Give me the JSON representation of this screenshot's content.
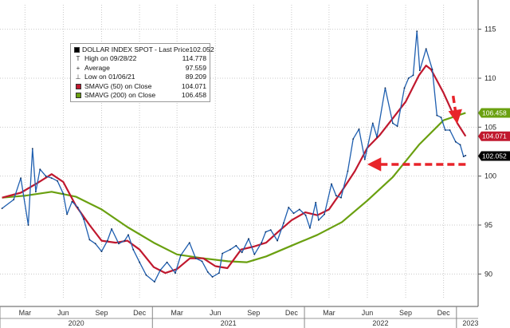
{
  "chart_data": {
    "type": "line",
    "title": "DOLLAR INDEX SPOT",
    "legend": {
      "placement": "top-left",
      "entries": [
        {
          "label": "DOLLAR INDEX SPOT - Last Price",
          "value": "102.052",
          "symbol": "box",
          "color": "#000000"
        },
        {
          "label": "High on 09/28/22",
          "value": "114.778",
          "symbol": "T"
        },
        {
          "label": "Average",
          "value": "97.559",
          "symbol": "+"
        },
        {
          "label": "Low on 01/06/21",
          "value": "89.209",
          "symbol": "⊥"
        },
        {
          "label": "SMAVG (50)  on Close",
          "value": "104.071",
          "symbol": "box",
          "color": "#c0182e"
        },
        {
          "label": "SMAVG (200)  on Close",
          "value": "106.458",
          "symbol": "box",
          "color": "#6aa010"
        }
      ]
    },
    "x_axis": {
      "months": [
        "Mar",
        "Jun",
        "Sep",
        "Dec",
        "Mar",
        "Jun",
        "Sep",
        "Dec",
        "Mar",
        "Jun",
        "Sep",
        "Dec"
      ],
      "years": [
        "2020",
        "2021",
        "2022",
        "2023"
      ]
    },
    "y_axis": {
      "ticks": [
        "90",
        "95",
        "100",
        "105",
        "110",
        "115"
      ],
      "range": [
        87.5,
        117.5
      ],
      "position": "right",
      "grid": true
    },
    "series": [
      {
        "name": "DOLLAR INDEX SPOT",
        "color": "#1f5fb0",
        "points": [
          [
            "2020-01-06",
            96.7
          ],
          [
            "2020-02-03",
            97.6
          ],
          [
            "2020-02-20",
            99.8
          ],
          [
            "2020-03-09",
            95.0
          ],
          [
            "2020-03-19",
            102.8
          ],
          [
            "2020-03-27",
            98.4
          ],
          [
            "2020-04-06",
            100.7
          ],
          [
            "2020-04-20",
            100.0
          ],
          [
            "2020-05-04",
            99.8
          ],
          [
            "2020-05-18",
            99.5
          ],
          [
            "2020-06-01",
            98.2
          ],
          [
            "2020-06-10",
            96.1
          ],
          [
            "2020-06-22",
            97.4
          ],
          [
            "2020-07-06",
            96.8
          ],
          [
            "2020-07-20",
            95.6
          ],
          [
            "2020-08-03",
            93.5
          ],
          [
            "2020-08-17",
            93.1
          ],
          [
            "2020-09-01",
            92.3
          ],
          [
            "2020-09-15",
            93.4
          ],
          [
            "2020-09-25",
            94.6
          ],
          [
            "2020-10-12",
            93.1
          ],
          [
            "2020-10-26",
            93.4
          ],
          [
            "2020-11-04",
            94.0
          ],
          [
            "2020-11-16",
            92.5
          ],
          [
            "2020-12-01",
            91.2
          ],
          [
            "2020-12-17",
            89.9
          ],
          [
            "2021-01-06",
            89.2
          ],
          [
            "2021-01-20",
            90.4
          ],
          [
            "2021-02-05",
            91.2
          ],
          [
            "2021-02-25",
            90.1
          ],
          [
            "2021-03-10",
            91.9
          ],
          [
            "2021-03-31",
            93.2
          ],
          [
            "2021-04-15",
            91.6
          ],
          [
            "2021-04-30",
            91.3
          ],
          [
            "2021-05-14",
            90.2
          ],
          [
            "2021-05-25",
            89.7
          ],
          [
            "2021-06-10",
            90.1
          ],
          [
            "2021-06-18",
            92.1
          ],
          [
            "2021-07-07",
            92.5
          ],
          [
            "2021-07-21",
            92.9
          ],
          [
            "2021-08-04",
            92.2
          ],
          [
            "2021-08-20",
            93.6
          ],
          [
            "2021-09-03",
            92.0
          ],
          [
            "2021-09-20",
            93.2
          ],
          [
            "2021-09-30",
            94.3
          ],
          [
            "2021-10-12",
            94.5
          ],
          [
            "2021-10-28",
            93.4
          ],
          [
            "2021-11-12",
            95.2
          ],
          [
            "2021-11-24",
            96.8
          ],
          [
            "2021-12-06",
            96.2
          ],
          [
            "2021-12-20",
            96.6
          ],
          [
            "2022-01-04",
            96.0
          ],
          [
            "2022-01-14",
            94.7
          ],
          [
            "2022-01-28",
            97.3
          ],
          [
            "2022-02-04",
            95.5
          ],
          [
            "2022-02-18",
            96.1
          ],
          [
            "2022-03-07",
            99.2
          ],
          [
            "2022-03-18",
            98.0
          ],
          [
            "2022-03-30",
            97.8
          ],
          [
            "2022-04-15",
            100.5
          ],
          [
            "2022-04-28",
            103.8
          ],
          [
            "2022-05-12",
            104.8
          ],
          [
            "2022-05-26",
            101.7
          ],
          [
            "2022-06-14",
            105.4
          ],
          [
            "2022-06-24",
            104.0
          ],
          [
            "2022-07-14",
            109.0
          ],
          [
            "2022-08-01",
            105.4
          ],
          [
            "2022-08-12",
            105.1
          ],
          [
            "2022-08-29",
            109.0
          ],
          [
            "2022-09-08",
            110.0
          ],
          [
            "2022-09-19",
            110.3
          ],
          [
            "2022-09-28",
            114.8
          ],
          [
            "2022-10-05",
            110.8
          ],
          [
            "2022-10-20",
            113.0
          ],
          [
            "2022-11-04",
            110.9
          ],
          [
            "2022-11-15",
            106.2
          ],
          [
            "2022-11-25",
            106.0
          ],
          [
            "2022-12-05",
            104.7
          ],
          [
            "2022-12-16",
            104.7
          ],
          [
            "2022-12-30",
            103.5
          ],
          [
            "2023-01-10",
            103.2
          ],
          [
            "2023-01-18",
            102.0
          ],
          [
            "2023-01-23",
            102.1
          ]
        ]
      },
      {
        "name": "SMAVG (50)  on Close",
        "color": "#c0182e",
        "points": [
          [
            "2020-01-06",
            97.8
          ],
          [
            "2020-02-20",
            98.3
          ],
          [
            "2020-03-31",
            99.3
          ],
          [
            "2020-05-04",
            100.2
          ],
          [
            "2020-06-01",
            99.4
          ],
          [
            "2020-07-01",
            97.0
          ],
          [
            "2020-08-03",
            95.0
          ],
          [
            "2020-09-01",
            93.4
          ],
          [
            "2020-10-05",
            93.2
          ],
          [
            "2020-11-02",
            93.4
          ],
          [
            "2020-12-01",
            92.5
          ],
          [
            "2021-01-04",
            90.7
          ],
          [
            "2021-02-01",
            90.1
          ],
          [
            "2021-03-01",
            90.5
          ],
          [
            "2021-04-01",
            91.6
          ],
          [
            "2021-05-03",
            91.6
          ],
          [
            "2021-06-01",
            90.8
          ],
          [
            "2021-06-30",
            90.6
          ],
          [
            "2021-08-02",
            92.5
          ],
          [
            "2021-09-01",
            92.8
          ],
          [
            "2021-10-01",
            93.2
          ],
          [
            "2021-11-01",
            94.4
          ],
          [
            "2021-12-01",
            95.5
          ],
          [
            "2022-01-03",
            96.3
          ],
          [
            "2022-02-01",
            96.0
          ],
          [
            "2022-03-01",
            96.6
          ],
          [
            "2022-04-01",
            98.5
          ],
          [
            "2022-05-02",
            100.5
          ],
          [
            "2022-06-01",
            102.9
          ],
          [
            "2022-07-01",
            104.2
          ],
          [
            "2022-08-01",
            105.9
          ],
          [
            "2022-09-01",
            107.6
          ],
          [
            "2022-10-03",
            110.3
          ],
          [
            "2022-10-20",
            111.3
          ],
          [
            "2022-11-01",
            110.9
          ],
          [
            "2022-12-01",
            108.5
          ],
          [
            "2023-01-03",
            105.4
          ],
          [
            "2023-01-23",
            104.07
          ]
        ]
      },
      {
        "name": "SMAVG (200)  on Close",
        "color": "#6aa010",
        "points": [
          [
            "2020-01-06",
            97.8
          ],
          [
            "2020-03-02",
            98.0
          ],
          [
            "2020-05-04",
            98.4
          ],
          [
            "2020-07-01",
            97.9
          ],
          [
            "2020-09-01",
            96.6
          ],
          [
            "2020-11-02",
            94.8
          ],
          [
            "2021-01-04",
            93.2
          ],
          [
            "2021-03-01",
            92.0
          ],
          [
            "2021-05-03",
            91.6
          ],
          [
            "2021-07-01",
            91.3
          ],
          [
            "2021-08-16",
            91.2
          ],
          [
            "2021-10-01",
            91.8
          ],
          [
            "2021-12-01",
            92.9
          ],
          [
            "2022-02-01",
            94.0
          ],
          [
            "2022-04-01",
            95.3
          ],
          [
            "2022-06-01",
            97.5
          ],
          [
            "2022-08-01",
            99.9
          ],
          [
            "2022-10-03",
            103.2
          ],
          [
            "2022-12-01",
            105.7
          ],
          [
            "2023-01-23",
            106.458
          ]
        ]
      }
    ],
    "annotations": [
      {
        "type": "dashed-arrow",
        "color": "#e8242a",
        "from": [
          "2023-01-23",
          101.2
        ],
        "to": [
          "2022-06-14",
          101.2
        ]
      },
      {
        "type": "dashed-arrow",
        "color": "#e8242a",
        "from": [
          "2022-12-24",
          108.2
        ],
        "to": [
          "2023-01-01",
          105.9
        ]
      }
    ],
    "value_tags": [
      {
        "text": "106.458",
        "value": 106.458,
        "bg": "#6aa010",
        "fg": "#ffffff"
      },
      {
        "text": "104.071",
        "value": 104.071,
        "bg": "#c0182e",
        "fg": "#ffffff"
      },
      {
        "text": "102.052",
        "value": 102.052,
        "bg": "#000000",
        "fg": "#ffffff"
      }
    ]
  }
}
